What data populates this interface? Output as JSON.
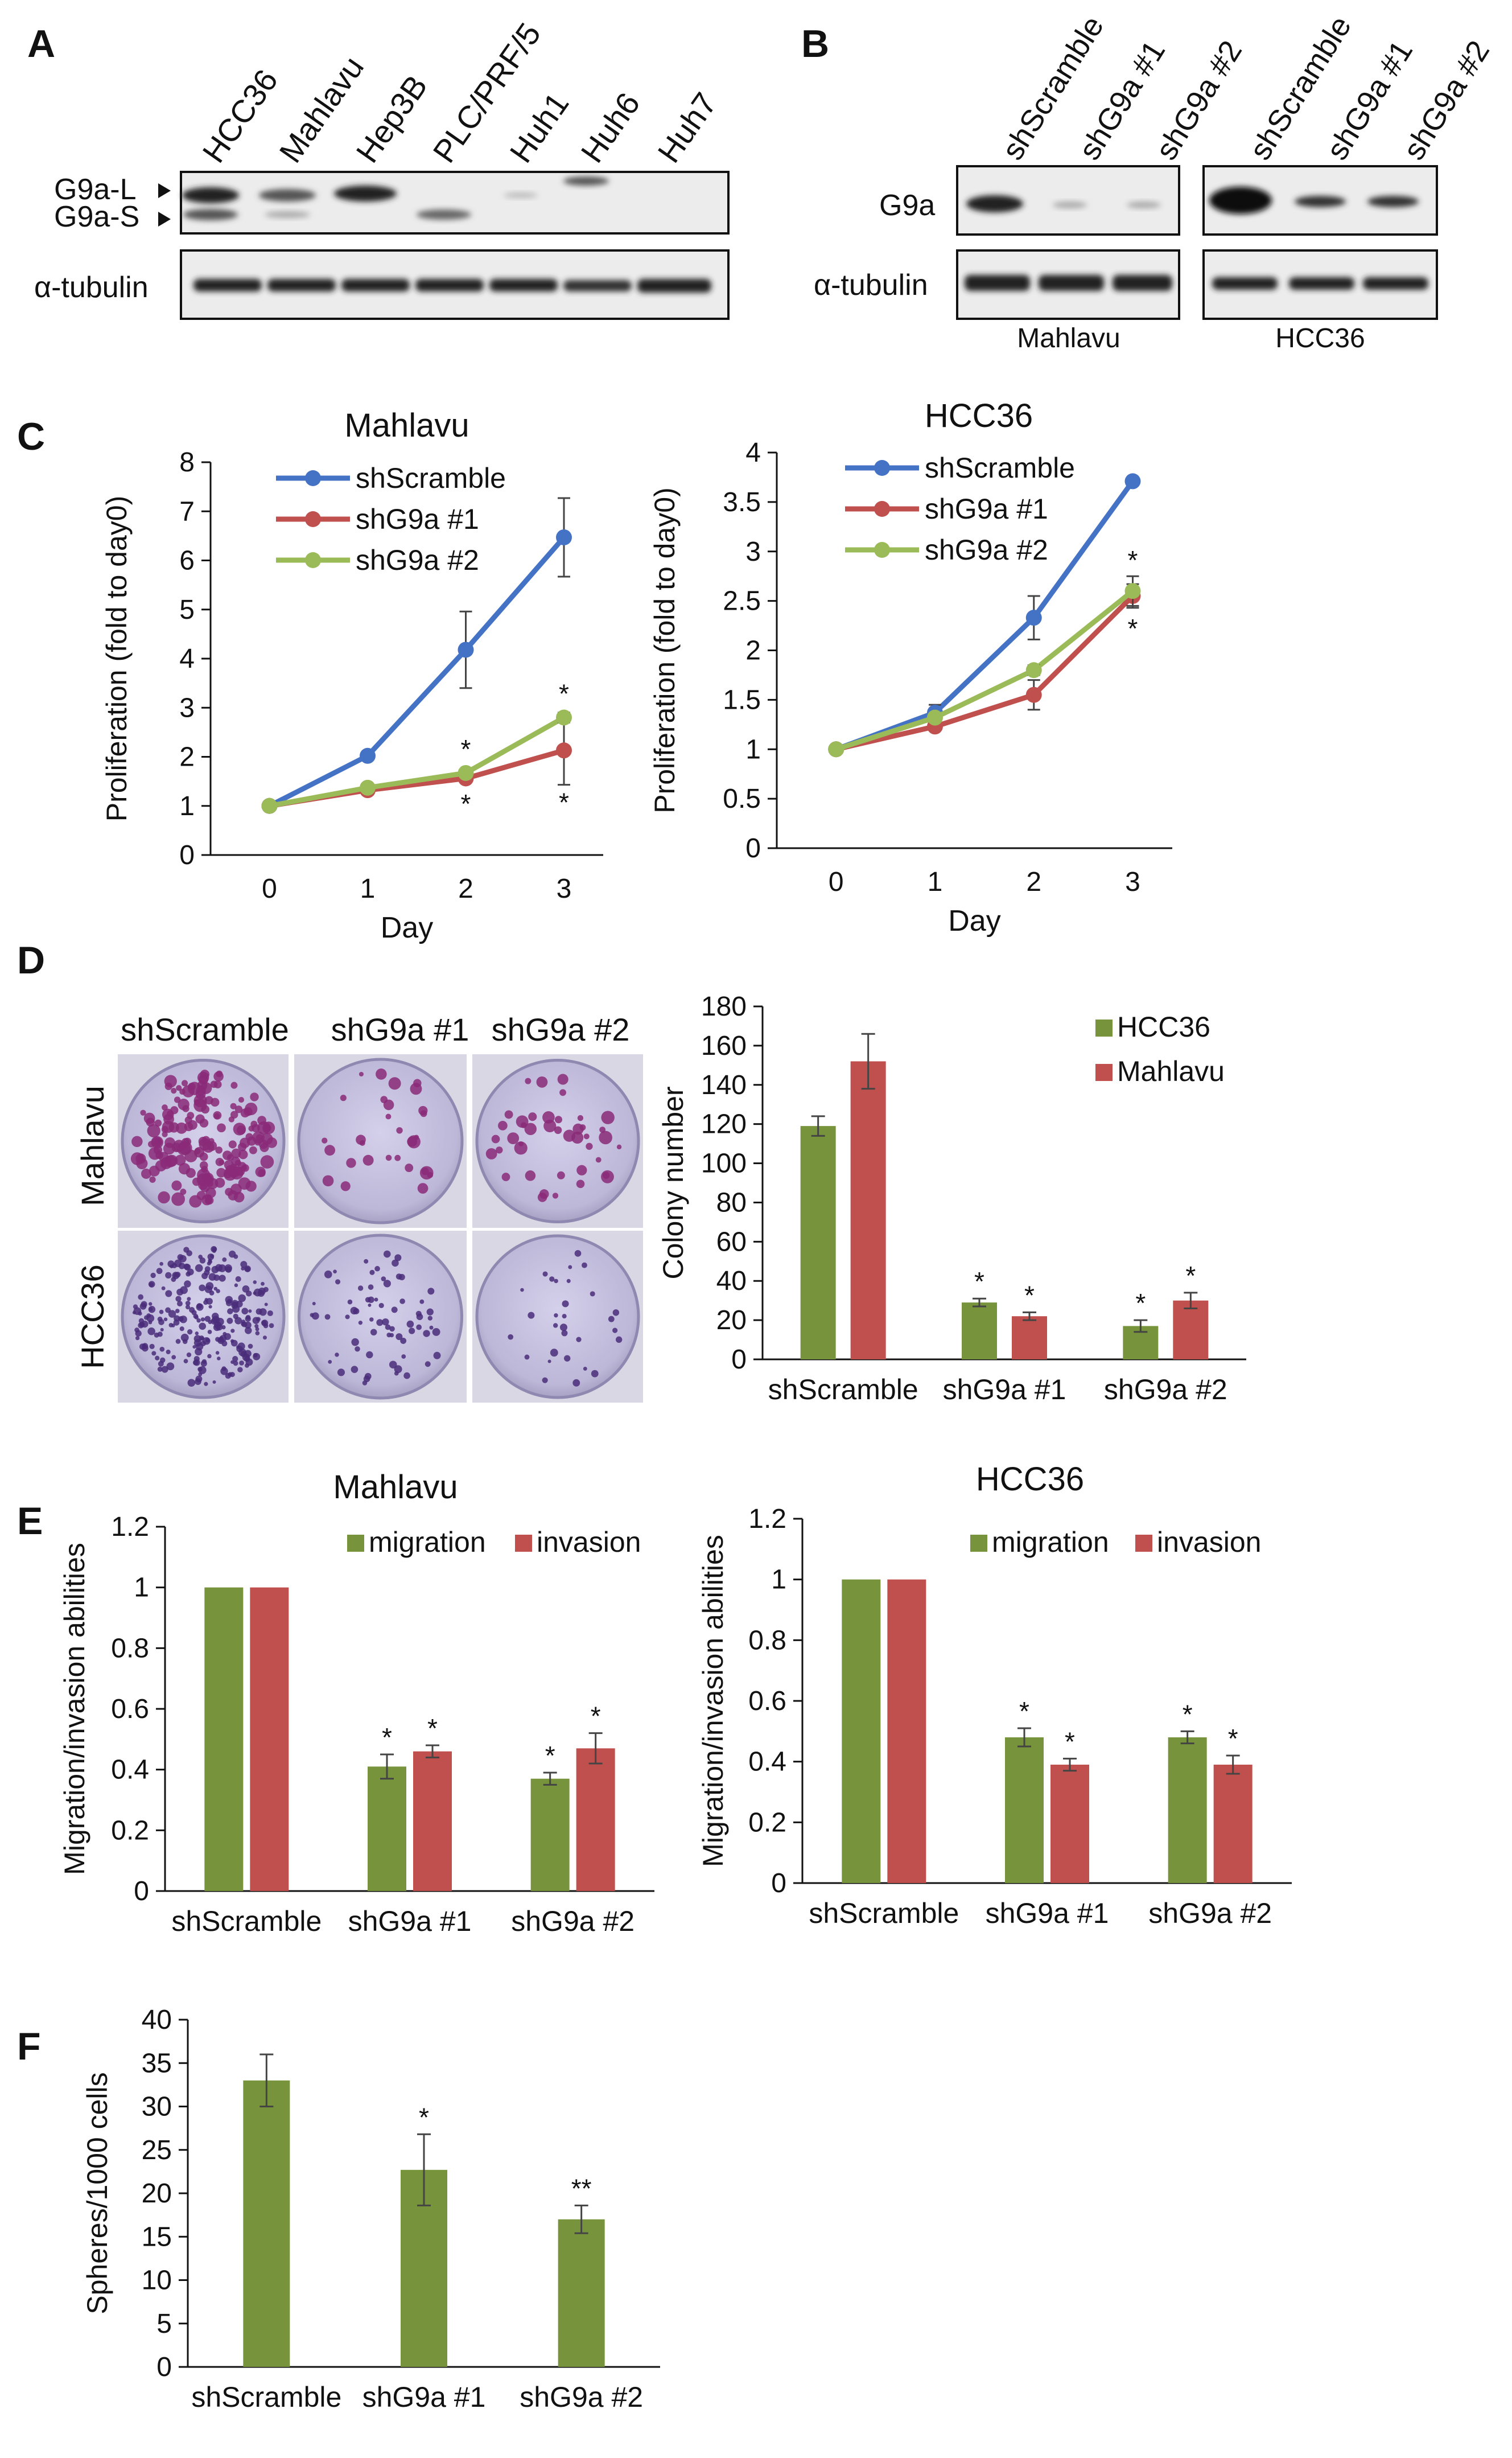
{
  "panel_labels": {
    "A": "A",
    "B": "B",
    "C": "C",
    "D": "D",
    "E": "E",
    "F": "F"
  },
  "blot_A": {
    "lanes": [
      "HCC36",
      "Mahlavu",
      "Hep3B",
      "PLC/PRF/5",
      "Huh1",
      "Huh6",
      "Huh7"
    ],
    "band_labels": {
      "g9a_l": "G9a-L",
      "g9a_s": "G9a-S",
      "tubulin": "α-tubulin"
    }
  },
  "blot_B": {
    "lanes": [
      "shScramble",
      "shG9a #1",
      "shG9a #2",
      "shScramble",
      "shG9a #1",
      "shG9a #2"
    ],
    "row_labels": {
      "g9a": "G9a",
      "tubulin": "α-tubulin"
    },
    "cell_lines": [
      "Mahlavu",
      "HCC36"
    ]
  },
  "colony_images": {
    "columns": [
      "shScramble",
      "shG9a #1",
      "shG9a #2"
    ],
    "rows": [
      "Mahlavu",
      "HCC36"
    ]
  },
  "sig_markers": {
    "single": "*",
    "double": "**"
  },
  "colors": {
    "blue": "#4472C4",
    "red": "#C0504D",
    "green": "#77933C",
    "lightgreen": "#9BBB59"
  },
  "chart_data": [
    {
      "id": "C_mahlavu",
      "type": "line",
      "title": "Mahlavu",
      "xlabel": "Day",
      "ylabel": "Proliferation (fold to day0)",
      "x": [
        0,
        1,
        2,
        3
      ],
      "ylim": [
        0,
        8
      ],
      "yticks": [
        0,
        1,
        2,
        3,
        4,
        5,
        6,
        7,
        8
      ],
      "series": [
        {
          "name": "shScramble",
          "values": [
            1,
            2.02,
            4.18,
            6.47
          ],
          "errors": [
            0,
            0.05,
            0.78,
            0.8
          ]
        },
        {
          "name": "shG9a #1",
          "values": [
            1,
            1.32,
            1.56,
            2.13
          ],
          "errors": [
            0,
            0.03,
            0.08,
            0.7
          ]
        },
        {
          "name": "shG9a #2",
          "values": [
            1,
            1.37,
            1.67,
            2.8
          ],
          "errors": [
            0,
            0.03,
            0.08,
            0.1
          ]
        }
      ],
      "annotations": [
        {
          "text": "*",
          "x": 2,
          "y": 1.97,
          "pos": "above"
        },
        {
          "text": "*",
          "x": 2,
          "y": 1.32,
          "pos": "below"
        },
        {
          "text": "*",
          "x": 3,
          "y": 3.1,
          "pos": "above"
        },
        {
          "text": "*",
          "x": 3,
          "y": 1.35,
          "pos": "below"
        }
      ]
    },
    {
      "id": "C_hcc36",
      "type": "line",
      "title": "HCC36",
      "xlabel": "Day",
      "ylabel": "Proliferation (fold to day0)",
      "x": [
        0,
        1,
        2,
        3
      ],
      "ylim": [
        0,
        4
      ],
      "yticks": [
        "0",
        "0.5",
        "1",
        "1.5",
        "2",
        "2.5",
        "3",
        "3.5",
        "4"
      ],
      "series": [
        {
          "name": "shScramble",
          "values": [
            1,
            1.37,
            2.33,
            3.71
          ],
          "errors": [
            0,
            0.08,
            0.22,
            0.03
          ]
        },
        {
          "name": "shG9a #1",
          "values": [
            1,
            1.23,
            1.55,
            2.55
          ],
          "errors": [
            0,
            0.03,
            0.15,
            0.12
          ]
        },
        {
          "name": "shG9a #2",
          "values": [
            1,
            1.32,
            1.8,
            2.6
          ],
          "errors": [
            0,
            0.03,
            0.05,
            0.15
          ]
        }
      ],
      "annotations": [
        {
          "text": "*",
          "x": 3,
          "y": 2.82,
          "pos": "above"
        },
        {
          "text": "*",
          "x": 3,
          "y": 2.36,
          "pos": "below"
        }
      ]
    },
    {
      "id": "D_colony",
      "type": "bar",
      "title": "",
      "xlabel": "",
      "ylabel": "Colony number",
      "categories": [
        "shScramble",
        "shG9a #1",
        "shG9a #2"
      ],
      "ylim": [
        0,
        180
      ],
      "yticks": [
        0,
        20,
        40,
        60,
        80,
        100,
        120,
        140,
        160,
        180
      ],
      "series": [
        {
          "name": "HCC36",
          "values": [
            119,
            29,
            17
          ],
          "errors": [
            5,
            2,
            3
          ]
        },
        {
          "name": "Mahlavu",
          "values": [
            152,
            22,
            30
          ],
          "errors": [
            14,
            2,
            4
          ]
        }
      ],
      "annotations": [
        "",
        "*",
        "*"
      ]
    },
    {
      "id": "E_mahlavu",
      "type": "bar",
      "title": "Mahlavu",
      "xlabel": "",
      "ylabel": "Migration/invasion abilities",
      "categories": [
        "shScramble",
        "shG9a #1",
        "shG9a #2"
      ],
      "ylim": [
        0,
        1.2
      ],
      "yticks": [
        "0",
        "0.2",
        "0.4",
        "0.6",
        "0.8",
        "1",
        "1.2"
      ],
      "series": [
        {
          "name": "migration",
          "values": [
            1.0,
            0.41,
            0.37
          ],
          "errors": [
            0,
            0.04,
            0.02
          ]
        },
        {
          "name": "invasion",
          "values": [
            1.0,
            0.46,
            0.47
          ],
          "errors": [
            0,
            0.02,
            0.05
          ]
        }
      ],
      "annotations": [
        "",
        "*",
        "*"
      ]
    },
    {
      "id": "E_hcc36",
      "type": "bar",
      "title": "HCC36",
      "xlabel": "",
      "ylabel": "Migration/invasion abilities",
      "categories": [
        "shScramble",
        "shG9a #1",
        "shG9a #2"
      ],
      "ylim": [
        0,
        1.2
      ],
      "yticks": [
        "0",
        "0.2",
        "0.4",
        "0.6",
        "0.8",
        "1",
        "1.2"
      ],
      "series": [
        {
          "name": "migration",
          "values": [
            1.0,
            0.48,
            0.48
          ],
          "errors": [
            0,
            0.03,
            0.02
          ]
        },
        {
          "name": "invasion",
          "values": [
            1.0,
            0.39,
            0.39
          ],
          "errors": [
            0,
            0.02,
            0.03
          ]
        }
      ],
      "annotations": [
        "",
        "*",
        "*"
      ]
    },
    {
      "id": "F_spheres",
      "type": "bar",
      "title": "",
      "xlabel": "",
      "ylabel": "Spheres/1000 cells",
      "categories": [
        "shScramble",
        "shG9a #1",
        "shG9a #2"
      ],
      "ylim": [
        0,
        40
      ],
      "yticks": [
        0,
        5,
        10,
        15,
        20,
        25,
        30,
        35,
        40
      ],
      "series": [
        {
          "name": "spheres",
          "values": [
            33,
            22.7,
            17
          ],
          "errors": [
            3,
            4.1,
            1.6
          ]
        }
      ],
      "annotations": [
        "",
        "*",
        "**"
      ]
    }
  ]
}
